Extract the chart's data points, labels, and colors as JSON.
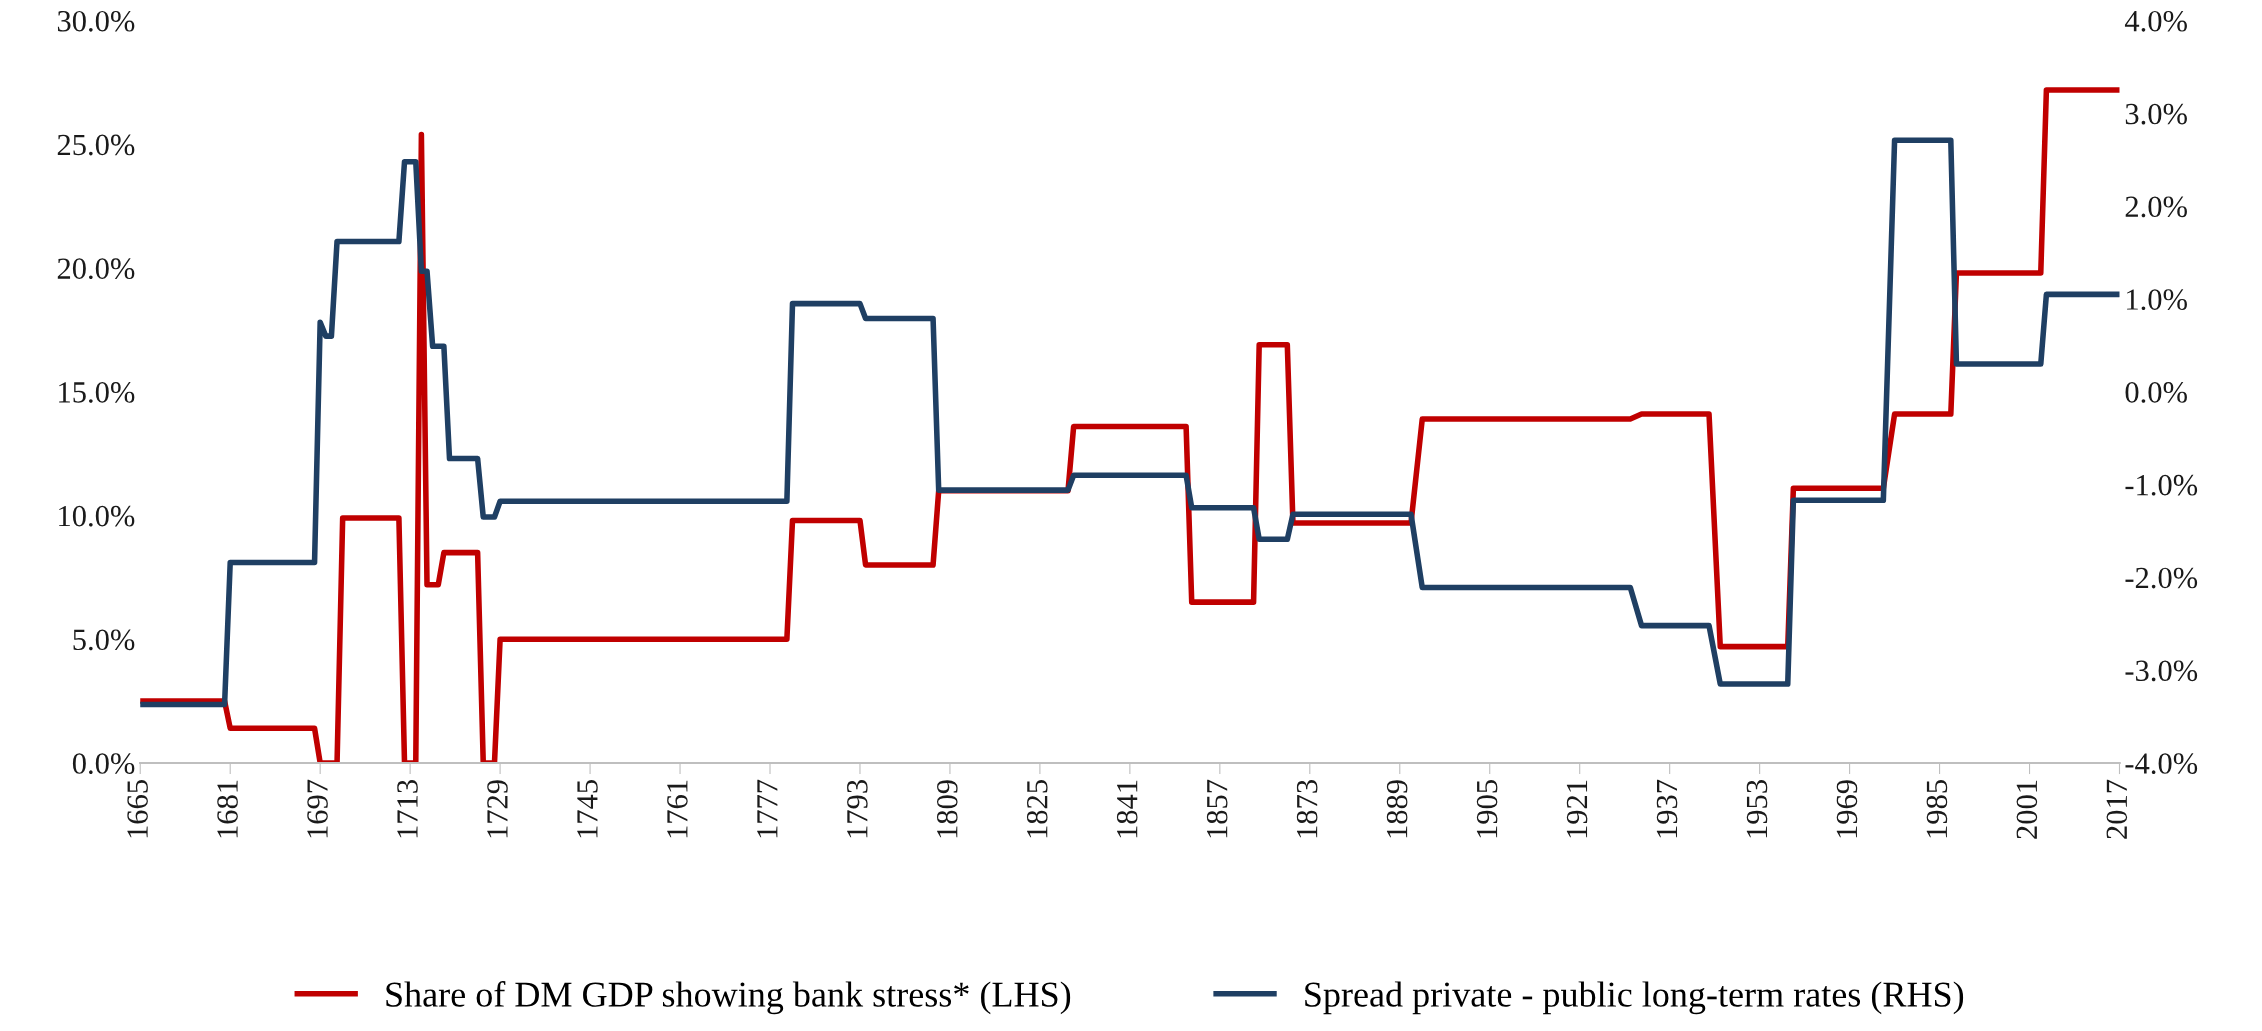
{
  "chart_data": {
    "type": "line",
    "xlim": [
      1665,
      2017
    ],
    "xticks": [
      1665,
      1681,
      1697,
      1713,
      1729,
      1745,
      1761,
      1777,
      1793,
      1809,
      1825,
      1841,
      1857,
      1873,
      1889,
      1905,
      1921,
      1937,
      1953,
      1969,
      1985,
      2001,
      2017
    ],
    "ylim": [
      0,
      30
    ],
    "yticks": [
      {
        "value": 0,
        "label": "0.0%"
      },
      {
        "value": 5,
        "label": "5.0%"
      },
      {
        "value": 10,
        "label": "10.0%"
      },
      {
        "value": 15,
        "label": "15.0%"
      },
      {
        "value": 20,
        "label": "20.0%"
      },
      {
        "value": 25,
        "label": "25.0%"
      },
      {
        "value": 30,
        "label": "30.0%"
      }
    ],
    "y2lim": [
      -4,
      4
    ],
    "y2ticks": [
      {
        "value": -4,
        "label": "-4.0%"
      },
      {
        "value": -3,
        "label": "-3.0%"
      },
      {
        "value": -2,
        "label": "-2.0%"
      },
      {
        "value": -1,
        "label": "-1.0%"
      },
      {
        "value": 0,
        "label": "0.0%"
      },
      {
        "value": 1,
        "label": "1.0%"
      },
      {
        "value": 2,
        "label": "2.0%"
      },
      {
        "value": 3,
        "label": "3.0%"
      },
      {
        "value": 4,
        "label": "4.0%"
      }
    ],
    "grid": false,
    "legend": "bottom",
    "marker": "none",
    "line_style": "solid",
    "series": [
      {
        "name": "Share of DM GDP showing bank stress* (LHS)",
        "color": "#c00000",
        "x": [
          1665,
          1680,
          1681,
          1696,
          1697,
          1700,
          1701,
          1711,
          1712,
          1714,
          1715,
          1716,
          1718,
          1719,
          1725,
          1726,
          1728,
          1729,
          1780,
          1781,
          1793,
          1794,
          1806,
          1807,
          1830,
          1831,
          1851,
          1852,
          1863,
          1864,
          1869,
          1870,
          1891,
          1893,
          1930,
          1932,
          1944,
          1946,
          1958,
          1959,
          1975,
          1977,
          1987,
          1988,
          2003,
          2004,
          2017
        ],
        "values": [
          2.5,
          2.5,
          1.4,
          1.4,
          0,
          0,
          9.9,
          9.9,
          0,
          0,
          25.4,
          7.2,
          7.2,
          8.5,
          8.5,
          0,
          0,
          5.0,
          5.0,
          9.8,
          9.8,
          8.0,
          8.0,
          11.0,
          11.0,
          13.6,
          13.6,
          6.5,
          6.5,
          16.9,
          16.9,
          9.7,
          9.7,
          13.9,
          13.9,
          14.1,
          14.1,
          4.7,
          4.7,
          11.1,
          11.1,
          14.1,
          14.1,
          19.8,
          19.8,
          27.2,
          27.2
        ]
      },
      {
        "name": "Spread private - public long-term rates (RHS)",
        "color": "#1f3f63",
        "axis": "y2",
        "x": [
          1665,
          1680,
          1681,
          1696,
          1697,
          1698,
          1699,
          1700,
          1711,
          1712,
          1714,
          1715,
          1716,
          1717,
          1719,
          1720,
          1725,
          1726,
          1728,
          1729,
          1780,
          1781,
          1793,
          1794,
          1806,
          1807,
          1830,
          1831,
          1851,
          1852,
          1863,
          1864,
          1869,
          1870,
          1891,
          1893,
          1930,
          1932,
          1944,
          1946,
          1958,
          1959,
          1975,
          1977,
          1987,
          1988,
          2003,
          2004,
          2017
        ],
        "values": [
          -3.37,
          -3.37,
          -1.84,
          -1.84,
          0.75,
          0.6,
          0.6,
          1.62,
          1.62,
          2.48,
          2.48,
          1.3,
          1.3,
          0.49,
          0.49,
          -0.72,
          -0.72,
          -1.35,
          -1.35,
          -1.18,
          -1.18,
          0.95,
          0.95,
          0.79,
          0.79,
          -1.06,
          -1.06,
          -0.9,
          -0.9,
          -1.25,
          -1.25,
          -1.59,
          -1.59,
          -1.32,
          -1.32,
          -2.11,
          -2.11,
          -2.52,
          -2.52,
          -3.15,
          -3.15,
          -1.17,
          -1.17,
          2.71,
          2.71,
          0.3,
          0.3,
          1.05,
          1.05
        ]
      }
    ]
  }
}
